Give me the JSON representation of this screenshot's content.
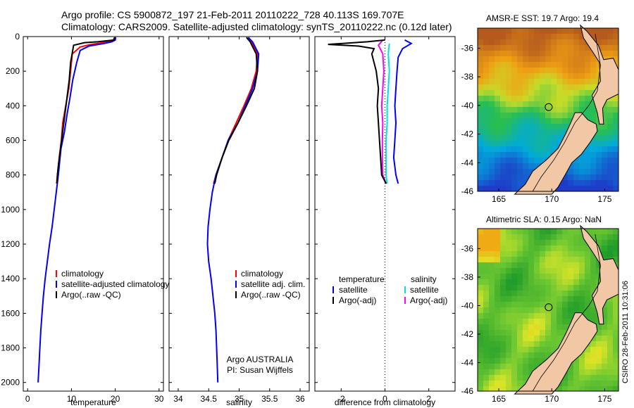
{
  "header": {
    "line1": "Argo profile: CS 5900872_197 21-Feb-2011 20110222_728 40.113S 169.707E",
    "line2": "Climatology: CARS2009. Satellite-adjusted climatology: synTS_20110222.nc (0.12d later)"
  },
  "colors": {
    "climatology": "#ff0000",
    "satellite": "#0000ff",
    "argo": "#000000",
    "satellite_sal": "#00e0e0",
    "argo_sal": "#ff00ff"
  },
  "chart_data": [
    {
      "type": "line",
      "xlabel": "temperature",
      "xlim": [
        -1,
        31
      ],
      "xticks": [
        0,
        10,
        20,
        30
      ],
      "ylim": [
        2050,
        0
      ],
      "yticks": [
        0,
        200,
        400,
        600,
        800,
        1000,
        1200,
        1400,
        1600,
        1800,
        2000
      ],
      "legend": [
        "climatology",
        "satellite-adjusted climatology",
        "Argo(..raw -QC)"
      ],
      "series": [
        {
          "name": "climatology",
          "color": "#ff0000",
          "points": [
            [
              19.8,
              5
            ],
            [
              19.6,
              20
            ],
            [
              18.5,
              30
            ],
            [
              14.5,
              45
            ],
            [
              12.0,
              60
            ],
            [
              10.2,
              100
            ],
            [
              9.8,
              200
            ],
            [
              9.4,
              300
            ],
            [
              8.7,
              400
            ],
            [
              8.0,
              500
            ],
            [
              7.7,
              600
            ],
            [
              7.2,
              700
            ],
            [
              6.8,
              800
            ],
            [
              6.6,
              850
            ]
          ]
        },
        {
          "name": "satellite-adjusted climatology",
          "color": "#0000ff",
          "points": [
            [
              20.1,
              5
            ],
            [
              20.0,
              20
            ],
            [
              19.2,
              30
            ],
            [
              17.5,
              40
            ],
            [
              14.0,
              55
            ],
            [
              12.0,
              80
            ],
            [
              11.2,
              150
            ],
            [
              10.3,
              250
            ],
            [
              9.7,
              350
            ],
            [
              9.0,
              450
            ],
            [
              8.4,
              550
            ],
            [
              7.6,
              650
            ],
            [
              7.0,
              800
            ],
            [
              6.3,
              950
            ],
            [
              5.6,
              1100
            ],
            [
              5.0,
              1200
            ],
            [
              4.5,
              1300
            ],
            [
              4.0,
              1400
            ],
            [
              3.6,
              1500
            ],
            [
              3.3,
              1600
            ],
            [
              3.0,
              1700
            ],
            [
              2.8,
              1800
            ],
            [
              2.6,
              1900
            ],
            [
              2.4,
              2000
            ]
          ]
        },
        {
          "name": "Argo(..raw -QC)",
          "color": "#000000",
          "points": [
            [
              19.9,
              5
            ],
            [
              19.7,
              20
            ],
            [
              16.0,
              30
            ],
            [
              13.0,
              35
            ],
            [
              10.5,
              50
            ],
            [
              9.8,
              150
            ],
            [
              9.5,
              250
            ],
            [
              9.0,
              350
            ],
            [
              8.5,
              450
            ],
            [
              8.0,
              550
            ],
            [
              7.5,
              650
            ],
            [
              7.0,
              750
            ],
            [
              6.8,
              800
            ],
            [
              6.7,
              850
            ]
          ]
        }
      ]
    },
    {
      "type": "line",
      "xlabel": "salinity",
      "xlim": [
        33.85,
        36.15
      ],
      "xticks": [
        34,
        34.5,
        35,
        35.5,
        36
      ],
      "xticklabels": [
        "34",
        "34.5",
        "35",
        "35.5",
        "36"
      ],
      "ylim": [
        2050,
        0
      ],
      "legend": [
        "climatology",
        "satellite adj. clim.",
        "Argo(..raw -QC)"
      ],
      "annotation": [
        "Argo AUSTRALIA",
        "PI: Susan Wijffels"
      ],
      "series": [
        {
          "name": "climatology",
          "color": "#ff0000",
          "points": [
            [
              35.15,
              5
            ],
            [
              35.2,
              30
            ],
            [
              35.3,
              100
            ],
            [
              35.28,
              200
            ],
            [
              35.2,
              300
            ],
            [
              35.08,
              400
            ],
            [
              34.95,
              500
            ],
            [
              34.82,
              600
            ],
            [
              34.72,
              700
            ],
            [
              34.62,
              800
            ],
            [
              34.58,
              850
            ]
          ]
        },
        {
          "name": "satellite adj. clim.",
          "color": "#0000ff",
          "points": [
            [
              35.15,
              5
            ],
            [
              35.22,
              30
            ],
            [
              35.32,
              100
            ],
            [
              35.3,
              200
            ],
            [
              35.22,
              300
            ],
            [
              35.1,
              400
            ],
            [
              34.98,
              500
            ],
            [
              34.82,
              600
            ],
            [
              34.72,
              700
            ],
            [
              34.62,
              800
            ],
            [
              34.56,
              900
            ],
            [
              34.52,
              1000
            ],
            [
              34.49,
              1100
            ],
            [
              34.48,
              1200
            ],
            [
              34.5,
              1300
            ],
            [
              34.54,
              1400
            ],
            [
              34.57,
              1500
            ],
            [
              34.6,
              1600
            ],
            [
              34.62,
              1700
            ],
            [
              34.63,
              1800
            ],
            [
              34.64,
              1900
            ],
            [
              34.65,
              2000
            ]
          ]
        },
        {
          "name": "Argo(..raw -QC)",
          "color": "#000000",
          "points": [
            [
              35.12,
              5
            ],
            [
              35.18,
              30
            ],
            [
              35.28,
              100
            ],
            [
              35.3,
              200
            ],
            [
              35.25,
              300
            ],
            [
              35.12,
              400
            ],
            [
              34.98,
              500
            ],
            [
              34.83,
              600
            ],
            [
              34.72,
              700
            ],
            [
              34.63,
              800
            ],
            [
              34.6,
              850
            ]
          ]
        }
      ]
    },
    {
      "type": "line",
      "xlabel": "difference from climatology",
      "xlim": [
        -3.2,
        3.2
      ],
      "xticks": [
        -2,
        0,
        2
      ],
      "ylim": [
        2050,
        0
      ],
      "legend": [
        "temperature",
        "satellite",
        "Argo(-adj)",
        "salinity",
        "satellite",
        "Argo(-adj)"
      ],
      "series": [
        {
          "name": "satellite",
          "color": "#0000ff",
          "points": [
            [
              0.9,
              20
            ],
            [
              1.2,
              40
            ],
            [
              0.8,
              70
            ],
            [
              0.6,
              120
            ],
            [
              0.55,
              200
            ],
            [
              0.5,
              300
            ],
            [
              0.45,
              400
            ],
            [
              0.5,
              500
            ],
            [
              0.45,
              600
            ],
            [
              0.4,
              700
            ],
            [
              0.5,
              800
            ],
            [
              0.6,
              850
            ]
          ]
        },
        {
          "name": "satellite",
          "color": "#00e0e0",
          "points": [
            [
              0.2,
              40
            ],
            [
              0.15,
              100
            ],
            [
              0.2,
              200
            ],
            [
              0.15,
              300
            ],
            [
              0.1,
              400
            ],
            [
              0.1,
              500
            ],
            [
              0.05,
              600
            ],
            [
              0.05,
              700
            ],
            [
              0.05,
              800
            ],
            [
              0.1,
              850
            ]
          ]
        },
        {
          "name": "Argo(-adj)",
          "color": "#ff00ff",
          "points": [
            [
              -0.1,
              20
            ],
            [
              -0.3,
              50
            ],
            [
              -0.1,
              100
            ],
            [
              -0.05,
              200
            ],
            [
              -0.1,
              300
            ],
            [
              -0.15,
              400
            ],
            [
              -0.1,
              500
            ],
            [
              -0.12,
              600
            ],
            [
              -0.12,
              700
            ],
            [
              -0.1,
              800
            ],
            [
              0.05,
              850
            ]
          ]
        },
        {
          "name": "Argo(-adj)",
          "color": "#000000",
          "points": [
            [
              0.0,
              20
            ],
            [
              -0.8,
              30
            ],
            [
              -2.6,
              45
            ],
            [
              -1.2,
              55
            ],
            [
              -0.5,
              70
            ],
            [
              -0.6,
              100
            ],
            [
              -0.4,
              200
            ],
            [
              -0.3,
              300
            ],
            [
              -0.35,
              400
            ],
            [
              -0.3,
              500
            ],
            [
              -0.25,
              600
            ],
            [
              -0.2,
              700
            ],
            [
              -0.15,
              800
            ],
            [
              0.05,
              850
            ]
          ]
        }
      ]
    },
    {
      "type": "heatmap",
      "title": "AMSR-E SST: 19.7 Argo: 19.4",
      "xlim": [
        163,
        176.3
      ],
      "ylim": [
        -46,
        -34.6
      ],
      "xticks": [
        165,
        170,
        175
      ],
      "yticks": [
        -36,
        -38,
        -40,
        -42,
        -44,
        -46
      ],
      "profile_location": [
        169.707,
        -40.113
      ]
    },
    {
      "type": "heatmap",
      "title": "Altimetric SLA: 0.15 Argo: NaN",
      "xlim": [
        163,
        176.3
      ],
      "ylim": [
        -46,
        -34.6
      ],
      "xticks": [
        165,
        170,
        175
      ],
      "yticks": [
        -36,
        -38,
        -40,
        -42,
        -44,
        -46
      ],
      "profile_location": [
        169.707,
        -40.113
      ]
    }
  ],
  "credit": "CSIRO 28-Feb-2011 10:31:06"
}
